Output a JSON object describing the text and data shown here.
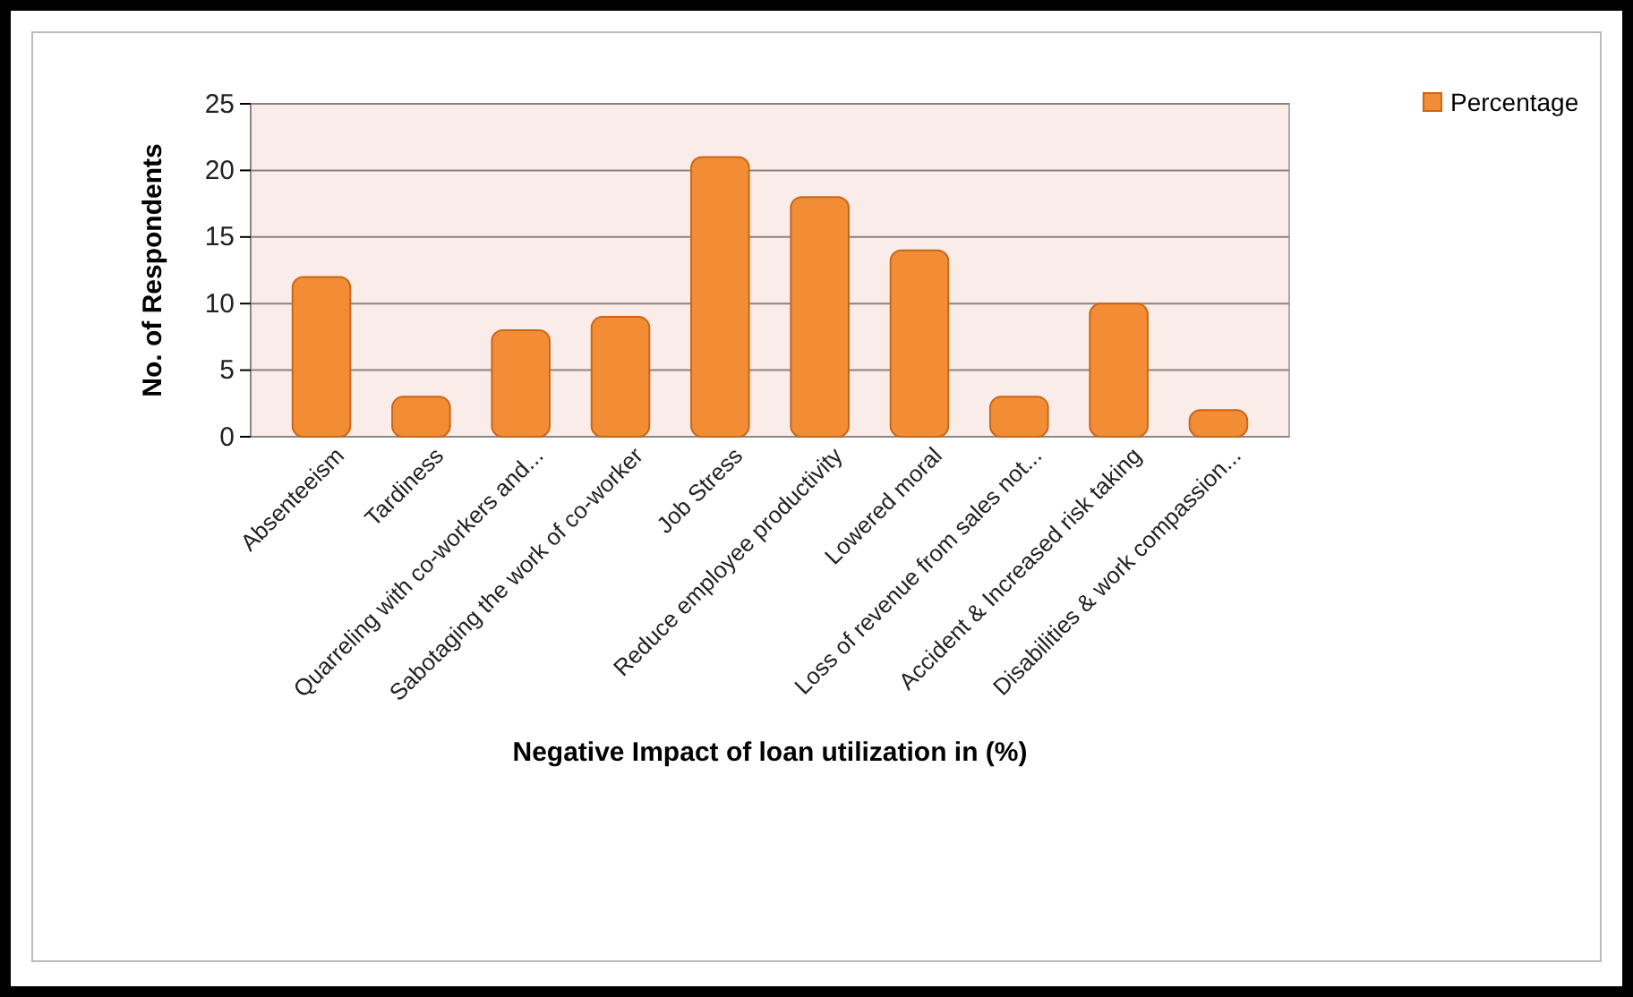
{
  "chart_data": {
    "type": "bar",
    "xlabel": "Negative Impact of loan utilization in (%)",
    "ylabel": "No. of Respondents",
    "categories": [
      "Absenteeism",
      "Tardiness",
      "Quarreling with co-workers and...",
      "Sabotaging the work of co-worker",
      "Job Stress",
      "Reduce employee productivity",
      "Lowered moral",
      "Loss of revenue from sales not...",
      "Accident & Increased risk taking",
      "Disabilities & work compassion..."
    ],
    "series": [
      {
        "name": "Percentage",
        "color": "#f38d35",
        "values": [
          12,
          3,
          8,
          9,
          21,
          18,
          14,
          3,
          10,
          2
        ]
      }
    ],
    "ylim": [
      0,
      25
    ],
    "yticks": [
      0,
      5,
      10,
      15,
      20,
      25
    ],
    "grid": "y",
    "legend": "top right"
  }
}
